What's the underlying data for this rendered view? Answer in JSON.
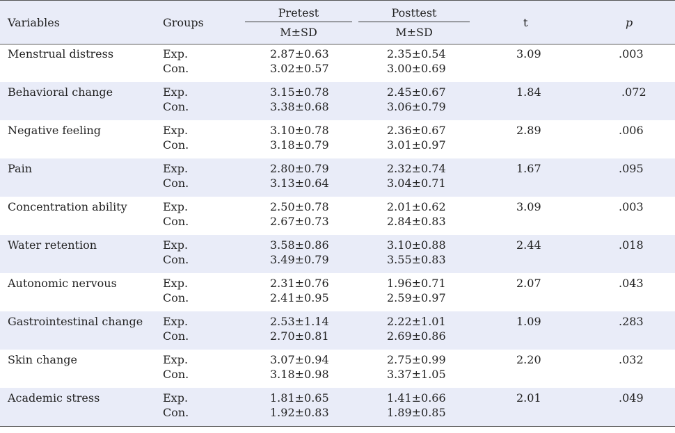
{
  "header": {
    "variables": "Variables",
    "groups": "Groups",
    "pretest": "Pretest",
    "posttest": "Posttest",
    "msd_pre": "M±SD",
    "msd_post": "M±SD",
    "t": "t",
    "p": "p"
  },
  "rows": [
    {
      "variable": "Menstrual distress",
      "g1": "Exp.",
      "g2": "Con.",
      "pre1": "2.87±0.63",
      "pre2": "3.02±0.57",
      "post1": "2.35±0.54",
      "post2": "3.00±0.69",
      "t": "3.09",
      "p": ".003"
    },
    {
      "variable": "Behavioral change",
      "g1": "Exp.",
      "g2": "Con.",
      "pre1": "3.15±0.78",
      "pre2": "3.38±0.68",
      "post1": "2.45±0.67",
      "post2": "3.06±0.79",
      "t": "1.84",
      "p": ".072"
    },
    {
      "variable": "Negative feeling",
      "g1": "Exp.",
      "g2": "Con.",
      "pre1": "3.10±0.78",
      "pre2": "3.18±0.79",
      "post1": "2.36±0.67",
      "post2": "3.01±0.97",
      "t": "2.89",
      "p": ".006"
    },
    {
      "variable": "Pain",
      "g1": "Exp.",
      "g2": "Con.",
      "pre1": "2.80±0.79",
      "pre2": "3.13±0.64",
      "post1": "2.32±0.74",
      "post2": "3.04±0.71",
      "t": "1.67",
      "p": ".095"
    },
    {
      "variable": "Concentration ability",
      "g1": "Exp.",
      "g2": "Con.",
      "pre1": "2.50±0.78",
      "pre2": "2.67±0.73",
      "post1": "2.01±0.62",
      "post2": "2.84±0.83",
      "t": "3.09",
      "p": ".003"
    },
    {
      "variable": "Water retention",
      "g1": "Exp.",
      "g2": "Con.",
      "pre1": "3.58±0.86",
      "pre2": "3.49±0.79",
      "post1": "3.10±0.88",
      "post2": "3.55±0.83",
      "t": "2.44",
      "p": ".018"
    },
    {
      "variable": "Autonomic nervous",
      "g1": "Exp.",
      "g2": "Con.",
      "pre1": "2.31±0.76",
      "pre2": "2.41±0.95",
      "post1": "1.96±0.71",
      "post2": "2.59±0.97",
      "t": "2.07",
      "p": ".043"
    },
    {
      "variable": "Gastrointestinal change",
      "g1": "Exp.",
      "g2": "Con.",
      "pre1": "2.53±1.14",
      "pre2": "2.70±0.81",
      "post1": "2.22±1.01",
      "post2": "2.69±0.86",
      "t": "1.09",
      "p": ".283"
    },
    {
      "variable": "Skin change",
      "g1": "Exp.",
      "g2": "Con.",
      "pre1": "3.07±0.94",
      "pre2": "3.18±0.98",
      "post1": "2.75±0.99",
      "post2": "3.37±1.05",
      "t": "2.20",
      "p": ".032"
    },
    {
      "variable": "Academic stress",
      "g1": "Exp.",
      "g2": "Con.",
      "pre1": "1.81±0.65",
      "pre2": "1.92±0.83",
      "post1": "1.41±0.66",
      "post2": "1.89±0.85",
      "t": "2.01",
      "p": ".049"
    }
  ]
}
